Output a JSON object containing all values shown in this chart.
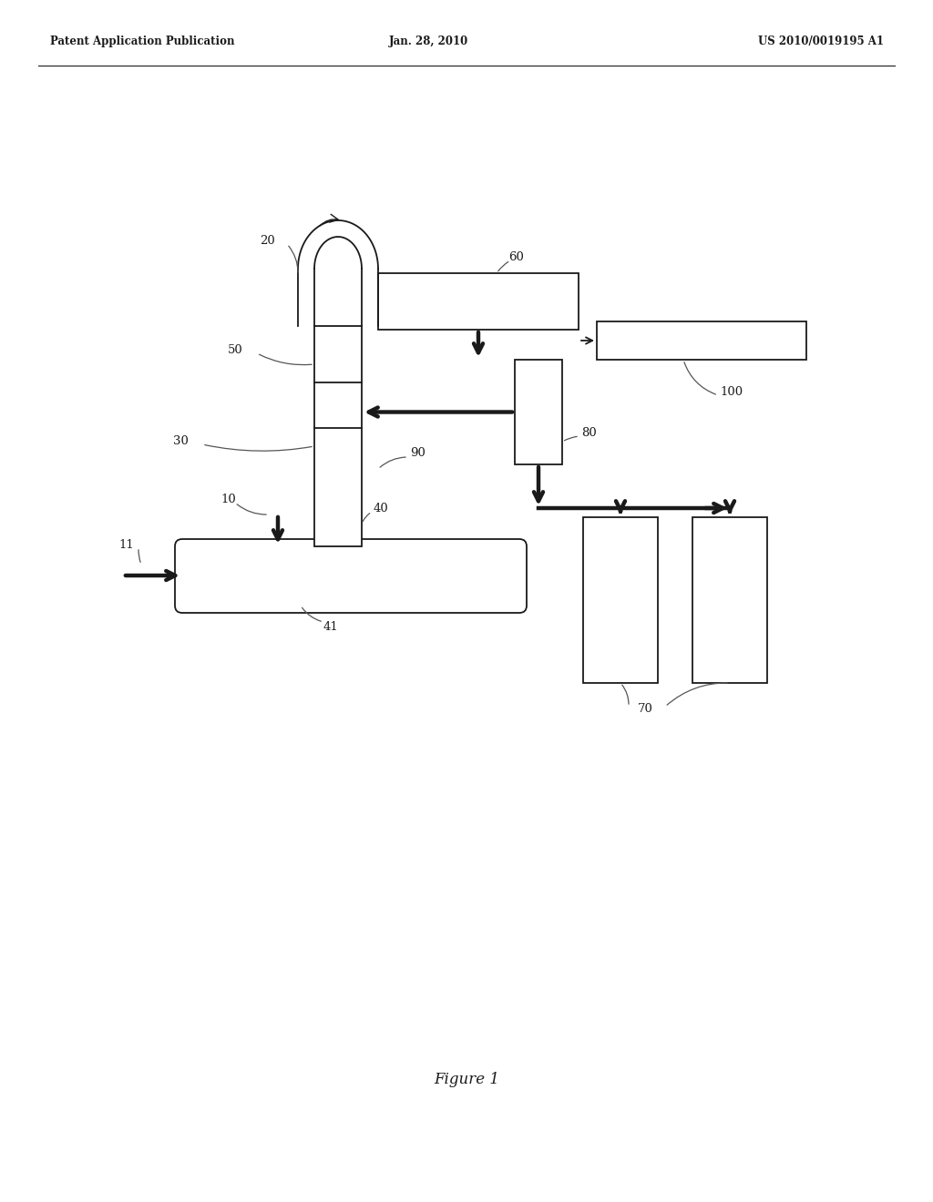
{
  "bg_color": "#ffffff",
  "header_left": "Patent Application Publication",
  "header_center": "Jan. 28, 2010",
  "header_right": "US 2010/0019195 A1",
  "figure_label": "Figure 1",
  "black": "#1a1a1a",
  "gray": "#888888",
  "lw_thin": 1.3,
  "lw_thick": 3.2,
  "label_fs": 9.5
}
